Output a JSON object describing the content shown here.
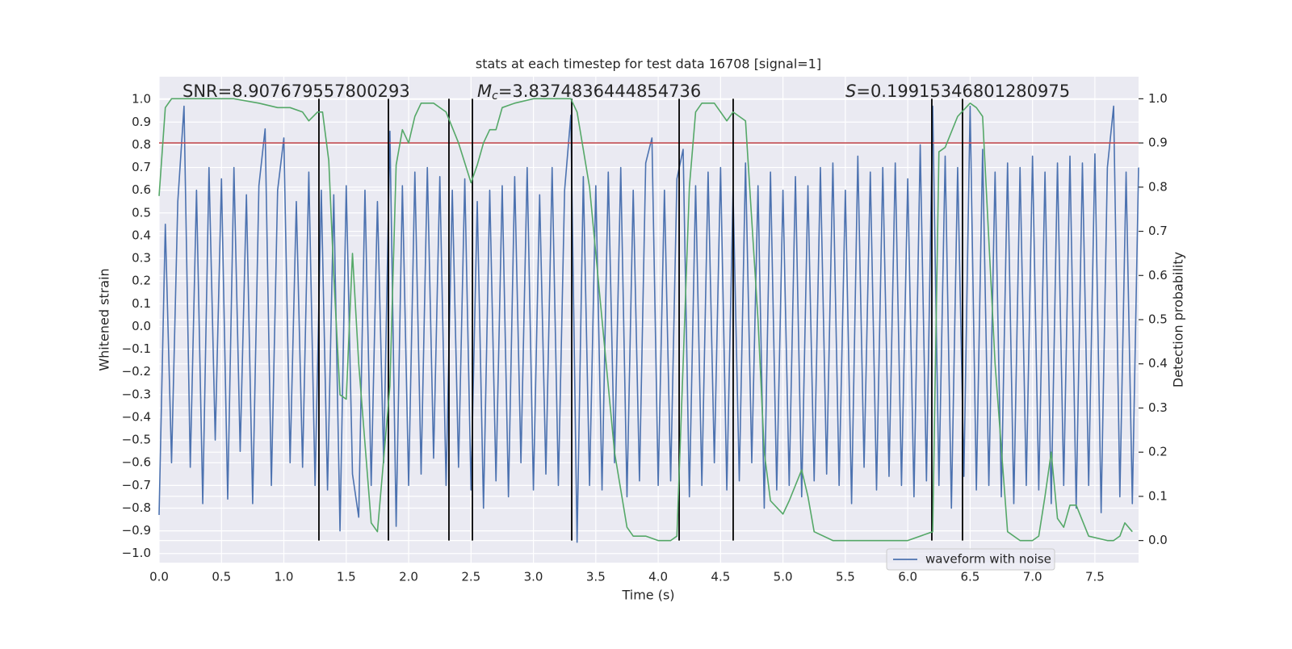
{
  "chart_data": {
    "type": "line",
    "title": "stats at each timestep for test data 16708 [signal=1]",
    "xlabel": "Time (s)",
    "ylabel": "Whitened strain",
    "y2label": "Detection probability",
    "annotations": [
      {
        "text": "SNR=8.907679557800293"
      },
      {
        "symbol": "M",
        "subscript": "c",
        "text": "=3.8374836444854736"
      },
      {
        "symbol": "S",
        "text": "=0.19915346801280975"
      }
    ],
    "xlim": [
      0,
      7.85
    ],
    "ylim": [
      -1.04,
      1.1
    ],
    "y2lim": [
      -0.05,
      1.05
    ],
    "xticks": [
      {
        "value": 0,
        "label": "0.0"
      },
      {
        "value": 0.5,
        "label": "0.5"
      },
      {
        "value": 1,
        "label": "1.0"
      },
      {
        "value": 1.5,
        "label": "1.5"
      },
      {
        "value": 2,
        "label": "2.0"
      },
      {
        "value": 2.5,
        "label": "2.5"
      },
      {
        "value": 3,
        "label": "3.0"
      },
      {
        "value": 3.5,
        "label": "3.5"
      },
      {
        "value": 4,
        "label": "4.0"
      },
      {
        "value": 4.5,
        "label": "4.5"
      },
      {
        "value": 5,
        "label": "5.0"
      },
      {
        "value": 5.5,
        "label": "5.5"
      },
      {
        "value": 6,
        "label": "6.0"
      },
      {
        "value": 6.5,
        "label": "6.5"
      },
      {
        "value": 7,
        "label": "7.0"
      },
      {
        "value": 7.5,
        "label": "7.5"
      }
    ],
    "yticks": [
      {
        "value": -1,
        "label": "−1.0"
      },
      {
        "value": -0.9,
        "label": "−0.9"
      },
      {
        "value": -0.8,
        "label": "−0.8"
      },
      {
        "value": -0.7,
        "label": "−0.7"
      },
      {
        "value": -0.6,
        "label": "−0.6"
      },
      {
        "value": -0.5,
        "label": "−0.5"
      },
      {
        "value": -0.4,
        "label": "−0.4"
      },
      {
        "value": -0.3,
        "label": "−0.3"
      },
      {
        "value": -0.2,
        "label": "−0.2"
      },
      {
        "value": -0.1,
        "label": "−0.1"
      },
      {
        "value": 0,
        "label": "0.0"
      },
      {
        "value": 0.1,
        "label": "0.1"
      },
      {
        "value": 0.2,
        "label": "0.2"
      },
      {
        "value": 0.3,
        "label": "0.3"
      },
      {
        "value": 0.4,
        "label": "0.4"
      },
      {
        "value": 0.5,
        "label": "0.5"
      },
      {
        "value": 0.6,
        "label": "0.6"
      },
      {
        "value": 0.7,
        "label": "0.7"
      },
      {
        "value": 0.8,
        "label": "0.8"
      },
      {
        "value": 0.9,
        "label": "0.9"
      },
      {
        "value": 1,
        "label": "1.0"
      }
    ],
    "y2ticks": [
      {
        "value": 0,
        "label": "0.0"
      },
      {
        "value": 0.1,
        "label": "0.1"
      },
      {
        "value": 0.2,
        "label": "0.2"
      },
      {
        "value": 0.3,
        "label": "0.3"
      },
      {
        "value": 0.4,
        "label": "0.4"
      },
      {
        "value": 0.5,
        "label": "0.5"
      },
      {
        "value": 0.6,
        "label": "0.6"
      },
      {
        "value": 0.7,
        "label": "0.7"
      },
      {
        "value": 0.8,
        "label": "0.8"
      },
      {
        "value": 0.9,
        "label": "0.9"
      },
      {
        "value": 1,
        "label": "1.0"
      }
    ],
    "grid": true,
    "legend": "lower right",
    "series": [
      {
        "name": "waveform with noise",
        "color": "#4c72b0",
        "x": [
          0,
          0.05,
          0.1,
          0.15,
          0.2,
          0.25,
          0.3,
          0.35,
          0.4,
          0.45,
          0.5,
          0.55,
          0.6,
          0.65,
          0.7,
          0.75,
          0.8,
          0.85,
          0.9,
          0.95,
          1,
          1.05,
          1.1,
          1.15,
          1.2,
          1.25,
          1.3,
          1.35,
          1.4,
          1.45,
          1.5,
          1.55,
          1.6,
          1.65,
          1.7,
          1.75,
          1.8,
          1.85,
          1.9,
          1.95,
          2,
          2.05,
          2.1,
          2.15,
          2.2,
          2.25,
          2.3,
          2.35,
          2.4,
          2.45,
          2.5,
          2.55,
          2.6,
          2.65,
          2.7,
          2.75,
          2.8,
          2.85,
          2.9,
          2.95,
          3,
          3.05,
          3.1,
          3.15,
          3.2,
          3.25,
          3.3,
          3.35,
          3.4,
          3.45,
          3.5,
          3.55,
          3.6,
          3.65,
          3.7,
          3.75,
          3.8,
          3.85,
          3.9,
          3.95,
          4,
          4.05,
          4.1,
          4.15,
          4.2,
          4.25,
          4.3,
          4.35,
          4.4,
          4.45,
          4.5,
          4.55,
          4.6,
          4.65,
          4.7,
          4.75,
          4.8,
          4.85,
          4.9,
          4.95,
          5,
          5.05,
          5.1,
          5.15,
          5.2,
          5.25,
          5.3,
          5.35,
          5.4,
          5.45,
          5.5,
          5.55,
          5.6,
          5.65,
          5.7,
          5.75,
          5.8,
          5.85,
          5.9,
          5.95,
          6,
          6.05,
          6.1,
          6.15,
          6.2,
          6.25,
          6.3,
          6.35,
          6.4,
          6.45,
          6.5,
          6.55,
          6.6,
          6.65,
          6.7,
          6.75,
          6.8,
          6.85,
          6.9,
          6.95,
          7,
          7.05,
          7.1,
          7.15,
          7.2,
          7.25,
          7.3,
          7.35,
          7.4,
          7.45,
          7.5,
          7.55,
          7.6,
          7.65,
          7.7,
          7.75,
          7.8,
          7.85
        ],
        "values": [
          -0.83,
          0.45,
          -0.6,
          0.55,
          0.97,
          -0.62,
          0.6,
          -0.78,
          0.7,
          -0.5,
          0.65,
          -0.76,
          0.7,
          -0.55,
          0.58,
          -0.78,
          0.62,
          0.87,
          -0.7,
          0.6,
          0.83,
          -0.6,
          0.55,
          -0.62,
          0.68,
          -0.7,
          0.6,
          -0.72,
          0.58,
          -0.9,
          0.62,
          -0.65,
          -0.84,
          0.6,
          -0.7,
          0.55,
          -0.6,
          0.86,
          -0.88,
          0.62,
          -0.7,
          0.68,
          -0.65,
          0.7,
          -0.58,
          0.66,
          -0.7,
          0.6,
          -0.62,
          0.65,
          -0.72,
          0.55,
          -0.8,
          0.6,
          -0.68,
          0.62,
          -0.75,
          0.66,
          -0.6,
          0.7,
          -0.72,
          0.58,
          -0.65,
          0.7,
          -0.7,
          0.6,
          0.93,
          -0.95,
          0.66,
          -0.7,
          0.62,
          -0.72,
          0.68,
          -0.6,
          0.7,
          -0.75,
          0.6,
          -0.68,
          0.72,
          0.83,
          -0.7,
          0.6,
          -0.68,
          0.65,
          0.78,
          -0.75,
          0.62,
          -0.7,
          0.68,
          -0.6,
          0.7,
          -0.72,
          0.6,
          -0.68,
          0.72,
          -0.6,
          0.62,
          -0.8,
          0.68,
          -0.72,
          0.6,
          -0.7,
          0.66,
          -0.75,
          0.62,
          -0.68,
          0.7,
          -0.65,
          0.72,
          -0.7,
          0.6,
          -0.78,
          0.75,
          -0.62,
          0.68,
          -0.72,
          0.7,
          -0.66,
          0.72,
          -0.7,
          0.65,
          -0.75,
          0.8,
          -0.68,
          0.97,
          -0.7,
          0.75,
          -0.8,
          0.7,
          -0.66,
          0.97,
          -0.72,
          0.78,
          -0.7,
          0.68,
          -0.75,
          0.72,
          -0.78,
          0.7,
          -0.7,
          0.75,
          -0.72,
          0.68,
          -0.78,
          0.72,
          -0.7,
          0.75,
          -0.8,
          0.72,
          -0.7,
          0.76,
          -0.82,
          0.7,
          0.97,
          -0.75,
          0.68,
          -0.78,
          0.7
        ]
      },
      {
        "color": "#55a868",
        "axis": "y2",
        "x": [
          0,
          0.05,
          0.1,
          0.3,
          0.6,
          0.8,
          0.95,
          1.05,
          1.15,
          1.2,
          1.27,
          1.31,
          1.36,
          1.4,
          1.45,
          1.5,
          1.55,
          1.6,
          1.7,
          1.75,
          1.85,
          1.9,
          1.95,
          2,
          2.05,
          2.1,
          2.2,
          2.3,
          2.4,
          2.5,
          2.55,
          2.6,
          2.65,
          2.7,
          2.75,
          2.85,
          3,
          3.3,
          3.35,
          3.45,
          3.55,
          3.65,
          3.75,
          3.8,
          3.9,
          4,
          4.1,
          4.15,
          4.2,
          4.25,
          4.3,
          4.35,
          4.45,
          4.55,
          4.6,
          4.7,
          4.8,
          4.85,
          4.9,
          5,
          5.05,
          5.15,
          5.2,
          5.25,
          5.4,
          5.6,
          6,
          6.2,
          6.25,
          6.3,
          6.4,
          6.5,
          6.55,
          6.6,
          6.7,
          6.8,
          6.9,
          7,
          7.05,
          7.1,
          7.15,
          7.2,
          7.25,
          7.3,
          7.35,
          7.45,
          7.6,
          7.65,
          7.7,
          7.74,
          7.8
        ],
        "values": [
          0.78,
          0.98,
          1,
          1,
          1,
          0.99,
          0.98,
          0.98,
          0.97,
          0.95,
          0.97,
          0.97,
          0.86,
          0.6,
          0.33,
          0.32,
          0.65,
          0.4,
          0.04,
          0.02,
          0.35,
          0.85,
          0.93,
          0.9,
          0.96,
          0.99,
          0.99,
          0.97,
          0.9,
          0.81,
          0.85,
          0.9,
          0.93,
          0.93,
          0.98,
          0.99,
          1,
          1,
          0.97,
          0.8,
          0.5,
          0.2,
          0.03,
          0.01,
          0.01,
          0,
          0,
          0.01,
          0.4,
          0.8,
          0.97,
          0.99,
          0.99,
          0.95,
          0.97,
          0.95,
          0.5,
          0.2,
          0.09,
          0.06,
          0.09,
          0.16,
          0.1,
          0.02,
          0,
          0,
          0,
          0.02,
          0.88,
          0.89,
          0.96,
          0.99,
          0.98,
          0.96,
          0.4,
          0.02,
          0,
          0,
          0.01,
          0.1,
          0.2,
          0.05,
          0.03,
          0.08,
          0.08,
          0.01,
          0,
          0,
          0.01,
          0.04,
          0.02
        ]
      }
    ],
    "threshold": {
      "value": 0.9,
      "axis": "y2",
      "color": "#c44e52"
    },
    "vlines": {
      "x": [
        1.281,
        1.838,
        2.323,
        2.511,
        3.307,
        4.168,
        4.601,
        6.193,
        6.439
      ],
      "ymin": 0,
      "ymax": 1,
      "axis": "y2",
      "color": "#000000"
    }
  }
}
